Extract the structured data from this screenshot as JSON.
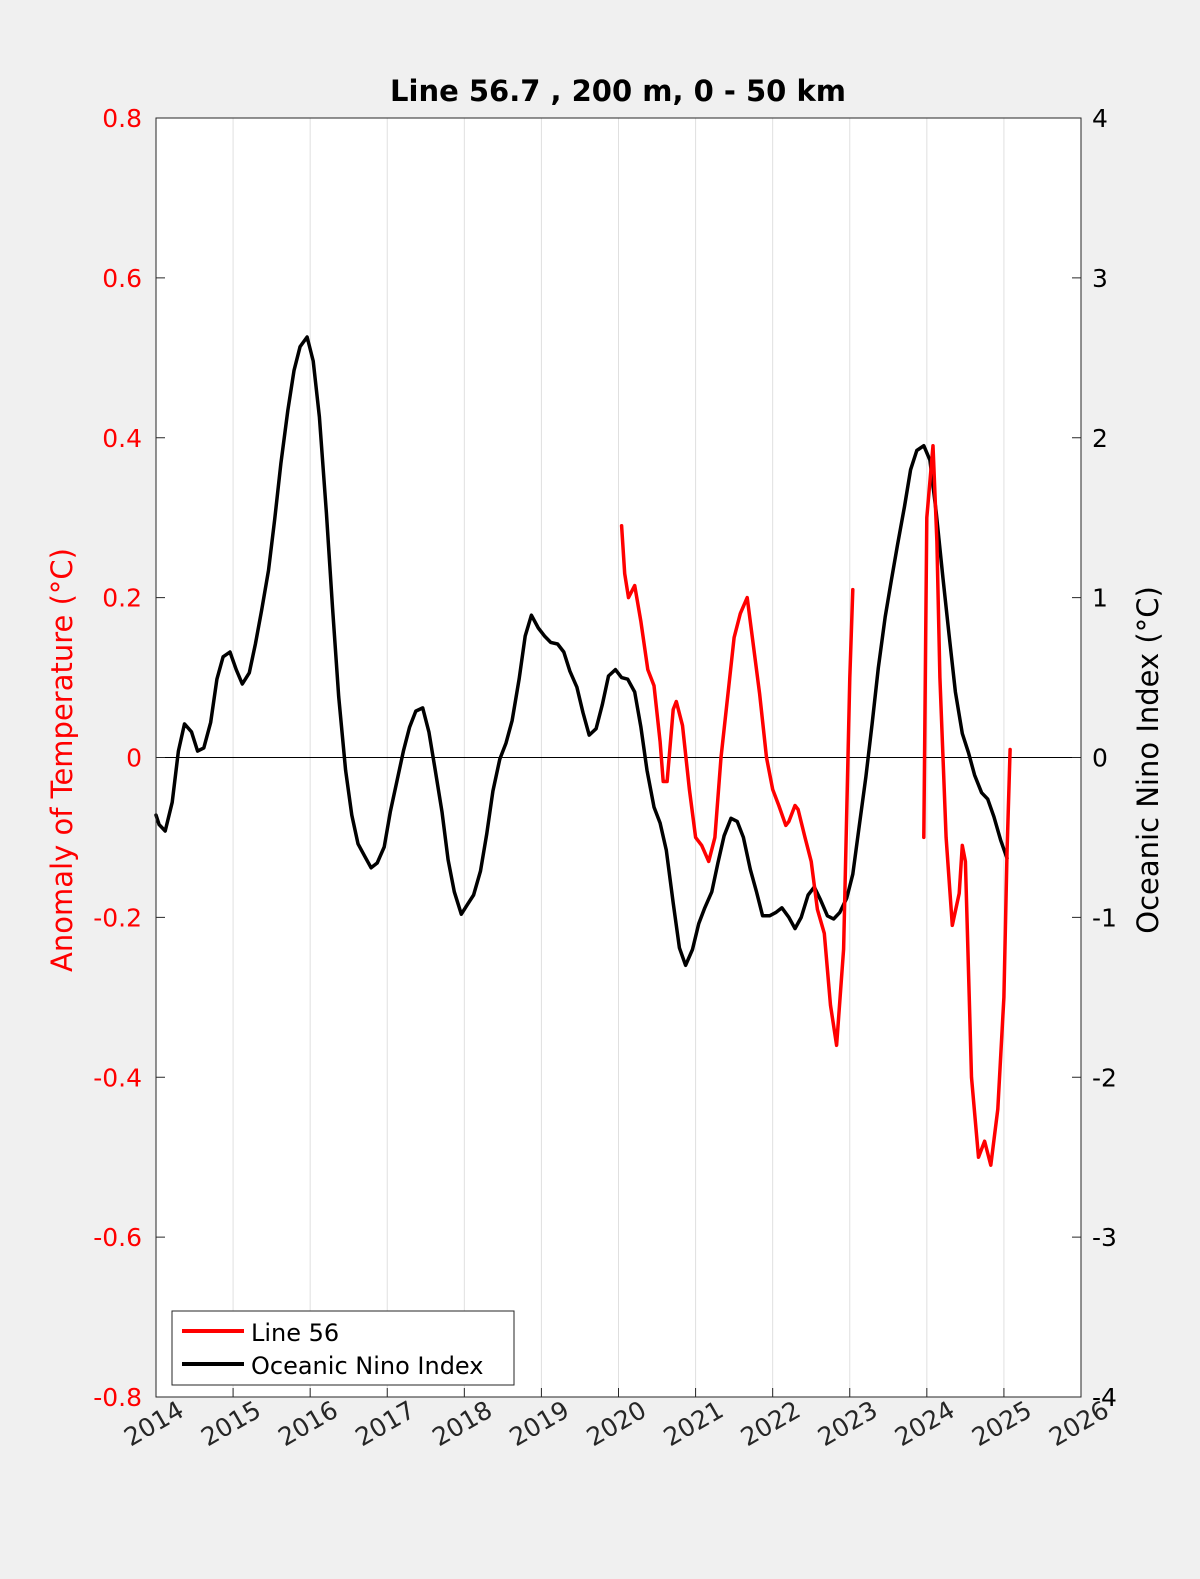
{
  "chart_data": {
    "type": "line",
    "title": "Line 56.7 , 200 m, 0 - 50 km",
    "xlabel": "",
    "ylabel": "Anomaly of Temperature (°C)",
    "y2label": "Oceanic Nino Index (°C)",
    "xlim": [
      2014,
      2026
    ],
    "ylim": [
      -0.8,
      0.8
    ],
    "y2lim": [
      -4,
      4
    ],
    "xticks": [
      "2014",
      "2015",
      "2016",
      "2017",
      "2018",
      "2019",
      "2020",
      "2021",
      "2022",
      "2023",
      "2024",
      "2025",
      "2026"
    ],
    "yticks": [
      "0.8",
      "0.6",
      "0.4",
      "0.2",
      "0",
      "-0.2",
      "-0.4",
      "-0.6",
      "-0.8"
    ],
    "y2ticks": [
      "4",
      "3",
      "2",
      "1",
      "0",
      "-1",
      "-2",
      "-3",
      "-4"
    ],
    "grid": "vertical",
    "zero_line": true,
    "legend": {
      "position": "bottom-left",
      "entries": [
        "Line 56",
        "Oceanic Nino Index"
      ]
    },
    "colors": {
      "line56": "#ff0000",
      "oni": "#000000",
      "left_axis": "#ff0000",
      "right_axis": "#000000",
      "plot_bg": "#ffffff",
      "figure_bg": "#f0f0f0"
    },
    "series": [
      {
        "name": "Line 56",
        "axis": "left",
        "color": "#ff0000",
        "segments": [
          [
            [
              2020.04,
              0.29
            ],
            [
              2020.08,
              0.23
            ],
            [
              2020.13,
              0.2
            ],
            [
              2020.21,
              0.215
            ],
            [
              2020.29,
              0.17
            ],
            [
              2020.38,
              0.11
            ],
            [
              2020.46,
              0.09
            ],
            [
              2020.54,
              0.02
            ],
            [
              2020.58,
              -0.03
            ],
            [
              2020.63,
              -0.03
            ],
            [
              2020.71,
              0.06
            ],
            [
              2020.75,
              0.07
            ],
            [
              2020.83,
              0.04
            ],
            [
              2020.92,
              -0.04
            ],
            [
              2021.0,
              -0.1
            ],
            [
              2021.08,
              -0.11
            ],
            [
              2021.17,
              -0.13
            ],
            [
              2021.25,
              -0.1
            ],
            [
              2021.33,
              0.0
            ],
            [
              2021.42,
              0.08
            ],
            [
              2021.5,
              0.15
            ],
            [
              2021.58,
              0.18
            ],
            [
              2021.67,
              0.2
            ],
            [
              2021.75,
              0.14
            ],
            [
              2021.83,
              0.08
            ],
            [
              2021.92,
              0.0
            ],
            [
              2022.0,
              -0.04
            ],
            [
              2022.08,
              -0.06
            ],
            [
              2022.17,
              -0.085
            ],
            [
              2022.21,
              -0.08
            ],
            [
              2022.29,
              -0.06
            ],
            [
              2022.33,
              -0.065
            ],
            [
              2022.42,
              -0.1
            ],
            [
              2022.5,
              -0.13
            ],
            [
              2022.58,
              -0.19
            ],
            [
              2022.67,
              -0.22
            ],
            [
              2022.75,
              -0.31
            ],
            [
              2022.83,
              -0.36
            ],
            [
              2022.92,
              -0.24
            ],
            [
              2023.0,
              0.1
            ],
            [
              2023.04,
              0.21
            ]
          ],
          [
            [
              2023.96,
              -0.1
            ],
            [
              2024.0,
              0.3
            ],
            [
              2024.08,
              0.39
            ],
            [
              2024.13,
              0.27
            ],
            [
              2024.17,
              0.1
            ],
            [
              2024.25,
              -0.1
            ],
            [
              2024.33,
              -0.21
            ],
            [
              2024.42,
              -0.17
            ],
            [
              2024.46,
              -0.11
            ],
            [
              2024.5,
              -0.13
            ],
            [
              2024.58,
              -0.4
            ],
            [
              2024.67,
              -0.5
            ],
            [
              2024.75,
              -0.48
            ],
            [
              2024.83,
              -0.51
            ],
            [
              2024.92,
              -0.44
            ],
            [
              2025.0,
              -0.3
            ],
            [
              2025.04,
              -0.12
            ],
            [
              2025.08,
              0.01
            ]
          ]
        ]
      },
      {
        "name": "Oceanic Nino Index",
        "axis": "right",
        "color": "#000000",
        "points": [
          [
            2014.0,
            -0.36
          ],
          [
            2014.04,
            -0.42
          ],
          [
            2014.12,
            -0.46
          ],
          [
            2014.21,
            -0.28
          ],
          [
            2014.29,
            0.04
          ],
          [
            2014.37,
            0.21
          ],
          [
            2014.46,
            0.16
          ],
          [
            2014.54,
            0.04
          ],
          [
            2014.62,
            0.06
          ],
          [
            2014.71,
            0.22
          ],
          [
            2014.79,
            0.49
          ],
          [
            2014.87,
            0.63
          ],
          [
            2014.96,
            0.66
          ],
          [
            2015.04,
            0.55
          ],
          [
            2015.12,
            0.46
          ],
          [
            2015.21,
            0.53
          ],
          [
            2015.29,
            0.71
          ],
          [
            2015.37,
            0.92
          ],
          [
            2015.46,
            1.17
          ],
          [
            2015.54,
            1.49
          ],
          [
            2015.62,
            1.84
          ],
          [
            2015.71,
            2.17
          ],
          [
            2015.79,
            2.42
          ],
          [
            2015.87,
            2.57
          ],
          [
            2015.96,
            2.63
          ],
          [
            2016.04,
            2.48
          ],
          [
            2016.12,
            2.13
          ],
          [
            2016.21,
            1.53
          ],
          [
            2016.29,
            0.94
          ],
          [
            2016.37,
            0.38
          ],
          [
            2016.46,
            -0.08
          ],
          [
            2016.54,
            -0.36
          ],
          [
            2016.62,
            -0.54
          ],
          [
            2016.71,
            -0.62
          ],
          [
            2016.79,
            -0.69
          ],
          [
            2016.87,
            -0.66
          ],
          [
            2016.96,
            -0.56
          ],
          [
            2017.04,
            -0.34
          ],
          [
            2017.12,
            -0.16
          ],
          [
            2017.21,
            0.04
          ],
          [
            2017.29,
            0.19
          ],
          [
            2017.37,
            0.29
          ],
          [
            2017.46,
            0.31
          ],
          [
            2017.54,
            0.16
          ],
          [
            2017.62,
            -0.07
          ],
          [
            2017.71,
            -0.34
          ],
          [
            2017.79,
            -0.64
          ],
          [
            2017.87,
            -0.84
          ],
          [
            2017.96,
            -0.98
          ],
          [
            2018.04,
            -0.92
          ],
          [
            2018.12,
            -0.86
          ],
          [
            2018.21,
            -0.71
          ],
          [
            2018.29,
            -0.48
          ],
          [
            2018.37,
            -0.21
          ],
          [
            2018.46,
            -0.01
          ],
          [
            2018.54,
            0.09
          ],
          [
            2018.62,
            0.23
          ],
          [
            2018.71,
            0.49
          ],
          [
            2018.79,
            0.76
          ],
          [
            2018.87,
            0.89
          ],
          [
            2018.96,
            0.81
          ],
          [
            2019.04,
            0.76
          ],
          [
            2019.12,
            0.72
          ],
          [
            2019.21,
            0.71
          ],
          [
            2019.29,
            0.66
          ],
          [
            2019.37,
            0.54
          ],
          [
            2019.46,
            0.44
          ],
          [
            2019.54,
            0.28
          ],
          [
            2019.62,
            0.14
          ],
          [
            2019.71,
            0.18
          ],
          [
            2019.79,
            0.33
          ],
          [
            2019.87,
            0.51
          ],
          [
            2019.96,
            0.55
          ],
          [
            2020.04,
            0.5
          ],
          [
            2020.12,
            0.49
          ],
          [
            2020.21,
            0.41
          ],
          [
            2020.29,
            0.19
          ],
          [
            2020.37,
            -0.08
          ],
          [
            2020.46,
            -0.31
          ],
          [
            2020.54,
            -0.41
          ],
          [
            2020.62,
            -0.58
          ],
          [
            2020.71,
            -0.91
          ],
          [
            2020.79,
            -1.19
          ],
          [
            2020.87,
            -1.3
          ],
          [
            2020.96,
            -1.2
          ],
          [
            2021.04,
            -1.04
          ],
          [
            2021.12,
            -0.94
          ],
          [
            2021.21,
            -0.84
          ],
          [
            2021.29,
            -0.66
          ],
          [
            2021.37,
            -0.49
          ],
          [
            2021.46,
            -0.38
          ],
          [
            2021.54,
            -0.4
          ],
          [
            2021.62,
            -0.5
          ],
          [
            2021.71,
            -0.7
          ],
          [
            2021.79,
            -0.84
          ],
          [
            2021.87,
            -0.99
          ],
          [
            2021.96,
            -0.99
          ],
          [
            2022.04,
            -0.97
          ],
          [
            2022.12,
            -0.94
          ],
          [
            2022.21,
            -1.0
          ],
          [
            2022.29,
            -1.07
          ],
          [
            2022.37,
            -1.0
          ],
          [
            2022.46,
            -0.86
          ],
          [
            2022.54,
            -0.81
          ],
          [
            2022.62,
            -0.89
          ],
          [
            2022.71,
            -0.99
          ],
          [
            2022.79,
            -1.01
          ],
          [
            2022.87,
            -0.97
          ],
          [
            2022.96,
            -0.88
          ],
          [
            2023.04,
            -0.73
          ],
          [
            2023.12,
            -0.44
          ],
          [
            2023.21,
            -0.12
          ],
          [
            2023.29,
            0.21
          ],
          [
            2023.37,
            0.56
          ],
          [
            2023.46,
            0.88
          ],
          [
            2023.54,
            1.11
          ],
          [
            2023.62,
            1.33
          ],
          [
            2023.71,
            1.57
          ],
          [
            2023.79,
            1.8
          ],
          [
            2023.87,
            1.92
          ],
          [
            2023.96,
            1.95
          ],
          [
            2024.04,
            1.86
          ],
          [
            2024.12,
            1.54
          ],
          [
            2024.21,
            1.12
          ],
          [
            2024.29,
            0.76
          ],
          [
            2024.37,
            0.41
          ],
          [
            2024.46,
            0.15
          ],
          [
            2024.54,
            0.03
          ],
          [
            2024.62,
            -0.11
          ],
          [
            2024.71,
            -0.22
          ],
          [
            2024.79,
            -0.26
          ],
          [
            2024.87,
            -0.37
          ],
          [
            2024.96,
            -0.52
          ],
          [
            2025.04,
            -0.63
          ]
        ]
      }
    ]
  }
}
